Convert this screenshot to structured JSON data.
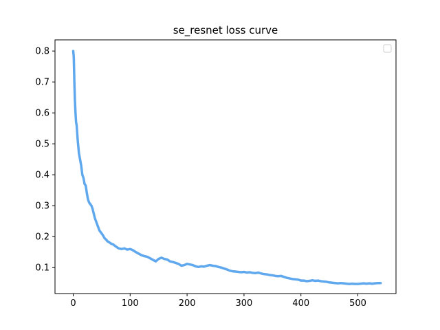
{
  "chart_data": {
    "type": "line",
    "title": "se_resnet loss curve",
    "xlabel": "",
    "ylabel": "",
    "xlim": [
      -32,
      567
    ],
    "ylim": [
      0.016,
      0.836
    ],
    "xticks": [
      0,
      100,
      200,
      300,
      400,
      500
    ],
    "yticks": [
      0.1,
      0.2,
      0.3,
      0.4,
      0.5,
      0.6,
      0.7,
      0.8
    ],
    "xtick_labels": [
      "0",
      "100",
      "200",
      "300",
      "400",
      "500"
    ],
    "ytick_labels": [
      "0.1",
      "0.2",
      "0.3",
      "0.4",
      "0.5",
      "0.6",
      "0.7",
      "0.8"
    ],
    "grid": false,
    "legend": {
      "placement": "top-right",
      "entries": []
    },
    "series": [
      {
        "color": "#5fa8ee",
        "x": [
          0,
          1,
          2,
          3,
          4,
          5,
          6,
          8,
          10,
          12,
          14,
          16,
          18,
          20,
          22,
          24,
          26,
          28,
          30,
          32,
          34,
          36,
          38,
          40,
          42,
          44,
          46,
          48,
          50,
          52,
          55,
          58,
          60,
          63,
          66,
          70,
          75,
          80,
          85,
          90,
          95,
          100,
          105,
          110,
          115,
          120,
          125,
          130,
          135,
          140,
          145,
          150,
          155,
          160,
          165,
          170,
          175,
          180,
          185,
          190,
          195,
          200,
          205,
          210,
          215,
          220,
          225,
          230,
          235,
          240,
          245,
          250,
          255,
          260,
          265,
          270,
          275,
          280,
          285,
          290,
          295,
          300,
          305,
          310,
          315,
          320,
          325,
          330,
          335,
          340,
          345,
          350,
          355,
          360,
          365,
          370,
          375,
          380,
          385,
          390,
          395,
          400,
          405,
          410,
          415,
          420,
          425,
          430,
          435,
          440,
          445,
          450,
          455,
          460,
          465,
          470,
          475,
          480,
          485,
          490,
          495,
          500,
          505,
          510,
          515,
          520,
          525,
          530,
          535,
          540
        ],
        "y": [
          0.8,
          0.78,
          0.7,
          0.64,
          0.6,
          0.57,
          0.56,
          0.51,
          0.47,
          0.45,
          0.43,
          0.4,
          0.39,
          0.37,
          0.365,
          0.34,
          0.32,
          0.31,
          0.305,
          0.3,
          0.29,
          0.275,
          0.26,
          0.25,
          0.24,
          0.23,
          0.22,
          0.215,
          0.21,
          0.205,
          0.195,
          0.19,
          0.185,
          0.182,
          0.178,
          0.175,
          0.168,
          0.162,
          0.16,
          0.162,
          0.158,
          0.16,
          0.156,
          0.15,
          0.145,
          0.14,
          0.137,
          0.135,
          0.13,
          0.125,
          0.12,
          0.128,
          0.132,
          0.128,
          0.126,
          0.12,
          0.118,
          0.115,
          0.112,
          0.106,
          0.108,
          0.112,
          0.11,
          0.108,
          0.104,
          0.102,
          0.104,
          0.103,
          0.106,
          0.108,
          0.106,
          0.105,
          0.102,
          0.1,
          0.097,
          0.094,
          0.09,
          0.088,
          0.087,
          0.086,
          0.085,
          0.086,
          0.084,
          0.085,
          0.083,
          0.082,
          0.084,
          0.081,
          0.079,
          0.078,
          0.076,
          0.075,
          0.073,
          0.072,
          0.073,
          0.07,
          0.067,
          0.065,
          0.063,
          0.062,
          0.061,
          0.058,
          0.058,
          0.056,
          0.057,
          0.059,
          0.057,
          0.058,
          0.056,
          0.055,
          0.054,
          0.052,
          0.051,
          0.05,
          0.049,
          0.05,
          0.049,
          0.048,
          0.047,
          0.048,
          0.047,
          0.047,
          0.048,
          0.049,
          0.048,
          0.049,
          0.048,
          0.049,
          0.05,
          0.05
        ]
      }
    ]
  }
}
